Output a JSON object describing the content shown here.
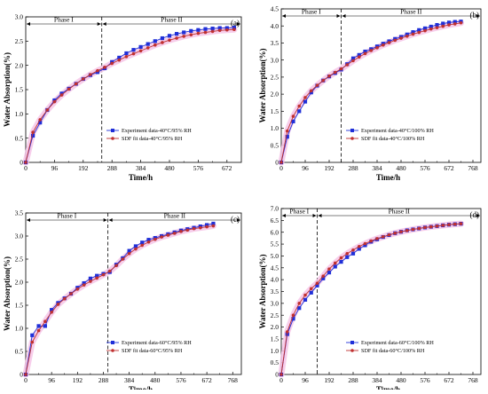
{
  "colors": {
    "experiment": "#1f2fd8",
    "sdf": "#c03030",
    "band": "#f6c6e8"
  },
  "chart_data": [
    {
      "type": "line",
      "panel": "(a)",
      "xlabel": "Time/h",
      "ylabel": "Water Absorption(%)",
      "xlim": [
        0,
        720
      ],
      "ylim": [
        0,
        3.0
      ],
      "xticks": [
        0,
        96,
        192,
        288,
        384,
        480,
        576,
        672
      ],
      "xtick_labels": [
        "0",
        "96",
        "192",
        "288",
        "384",
        "480",
        "576",
        "672"
      ],
      "yticks": [
        0,
        0.5,
        1.0,
        1.5,
        2.0,
        2.5,
        3.0
      ],
      "ytick_labels": [
        "0",
        "0.5",
        "1.0",
        "1.5",
        "2.0",
        "2.5",
        "3.0"
      ],
      "phase_split": 254,
      "phase_labels": [
        "Phase I",
        "Phase II"
      ],
      "series": [
        {
          "name": "Experiment data-40°C/95% RH",
          "marker": "square",
          "x": [
            0,
            24,
            48,
            72,
            96,
            120,
            144,
            168,
            192,
            216,
            240,
            264,
            288,
            312,
            336,
            360,
            384,
            408,
            432,
            456,
            480,
            504,
            528,
            552,
            576,
            600,
            624,
            648,
            672,
            696
          ],
          "y": [
            0,
            0.55,
            0.82,
            1.08,
            1.28,
            1.42,
            1.52,
            1.62,
            1.72,
            1.8,
            1.86,
            1.94,
            2.07,
            2.16,
            2.25,
            2.32,
            2.38,
            2.44,
            2.5,
            2.56,
            2.61,
            2.65,
            2.68,
            2.71,
            2.73,
            2.75,
            2.76,
            2.77,
            2.77,
            2.78
          ]
        },
        {
          "name": "SDF fit data-40°C/95% RH",
          "marker": "circle",
          "x": [
            0,
            24,
            48,
            72,
            96,
            120,
            144,
            168,
            192,
            216,
            240,
            264,
            288,
            312,
            336,
            360,
            384,
            408,
            432,
            456,
            480,
            504,
            528,
            552,
            576,
            600,
            624,
            648,
            672,
            696
          ],
          "y": [
            0,
            0.62,
            0.88,
            1.08,
            1.25,
            1.39,
            1.51,
            1.62,
            1.72,
            1.81,
            1.89,
            1.96,
            2.04,
            2.11,
            2.18,
            2.24,
            2.3,
            2.36,
            2.42,
            2.47,
            2.52,
            2.56,
            2.6,
            2.63,
            2.66,
            2.68,
            2.7,
            2.72,
            2.73,
            2.74
          ]
        }
      ]
    },
    {
      "type": "line",
      "panel": "(b)",
      "xlabel": "Time/h",
      "ylabel": "Water Absorption(%)",
      "xlim": [
        0,
        800
      ],
      "ylim": [
        0,
        4.5
      ],
      "xticks": [
        0,
        96,
        192,
        288,
        384,
        480,
        576,
        672,
        768
      ],
      "xtick_labels": [
        "0",
        "96",
        "192",
        "288",
        "384",
        "480",
        "576",
        "672",
        "768"
      ],
      "yticks": [
        0,
        0.5,
        1.0,
        1.5,
        2.0,
        2.5,
        3.0,
        3.5,
        4.0,
        4.5
      ],
      "ytick_labels": [
        "0",
        "0.5",
        "1.0",
        "1.5",
        "2.0",
        "2.5",
        "3.0",
        "3.5",
        "4.0",
        "4.5"
      ],
      "phase_split": 240,
      "phase_labels": [
        "Phase I",
        "Phase II"
      ],
      "series": [
        {
          "name": "Experiment data-40°C/100% RH",
          "marker": "square",
          "x": [
            0,
            24,
            48,
            72,
            96,
            120,
            144,
            168,
            192,
            216,
            240,
            264,
            288,
            312,
            336,
            360,
            384,
            408,
            432,
            456,
            480,
            504,
            528,
            552,
            576,
            600,
            624,
            648,
            672,
            696,
            720
          ],
          "y": [
            0,
            0.75,
            1.2,
            1.5,
            1.78,
            2.05,
            2.25,
            2.4,
            2.52,
            2.62,
            2.72,
            2.88,
            3.05,
            3.15,
            3.25,
            3.32,
            3.4,
            3.48,
            3.55,
            3.62,
            3.68,
            3.75,
            3.82,
            3.88,
            3.93,
            3.98,
            4.03,
            4.07,
            4.1,
            4.12,
            4.13
          ]
        },
        {
          "name": "SDF fit data-40°C/100% RH",
          "marker": "circle",
          "x": [
            0,
            24,
            48,
            72,
            96,
            120,
            144,
            168,
            192,
            216,
            240,
            264,
            288,
            312,
            336,
            360,
            384,
            408,
            432,
            456,
            480,
            504,
            528,
            552,
            576,
            600,
            624,
            648,
            672,
            696,
            720
          ],
          "y": [
            0,
            0.92,
            1.35,
            1.65,
            1.9,
            2.1,
            2.26,
            2.4,
            2.53,
            2.64,
            2.74,
            2.86,
            2.98,
            3.09,
            3.19,
            3.28,
            3.36,
            3.44,
            3.51,
            3.58,
            3.64,
            3.7,
            3.76,
            3.81,
            3.86,
            3.91,
            3.95,
            3.99,
            4.03,
            4.06,
            4.09
          ]
        }
      ]
    },
    {
      "type": "line",
      "panel": "(c)",
      "xlabel": "Time/h",
      "ylabel": "Water Absorption(%)",
      "xlim": [
        0,
        800
      ],
      "ylim": [
        0,
        3.5
      ],
      "xticks": [
        0,
        96,
        192,
        288,
        384,
        480,
        576,
        672,
        768
      ],
      "xtick_labels": [
        "0",
        "96",
        "192",
        "288",
        "384",
        "480",
        "576",
        "672",
        "768"
      ],
      "yticks": [
        0,
        0.5,
        1.0,
        1.5,
        2.0,
        2.5,
        3.0,
        3.5
      ],
      "ytick_labels": [
        "0",
        "0.5",
        "1.0",
        "1.5",
        "2.0",
        "2.5",
        "3.0",
        "3.5"
      ],
      "phase_split": 305,
      "phase_labels": [
        "Phase I",
        "Phase II"
      ],
      "series": [
        {
          "name": "Experiment data-60°C/95% RH",
          "marker": "square",
          "x": [
            0,
            24,
            48,
            72,
            96,
            120,
            144,
            168,
            192,
            216,
            240,
            264,
            288,
            312,
            336,
            360,
            384,
            408,
            432,
            456,
            480,
            504,
            528,
            552,
            576,
            600,
            624,
            648,
            672,
            696
          ],
          "y": [
            0,
            0.85,
            1.05,
            1.05,
            1.4,
            1.55,
            1.65,
            1.75,
            1.88,
            1.98,
            2.08,
            2.14,
            2.18,
            2.22,
            2.38,
            2.52,
            2.68,
            2.78,
            2.86,
            2.92,
            2.96,
            3.0,
            3.04,
            3.08,
            3.12,
            3.15,
            3.18,
            3.21,
            3.24,
            3.27
          ]
        },
        {
          "name": "SDF fit data-60°C/95% RH",
          "marker": "circle",
          "x": [
            0,
            24,
            48,
            72,
            96,
            120,
            144,
            168,
            192,
            216,
            240,
            264,
            288,
            312,
            336,
            360,
            384,
            408,
            432,
            456,
            480,
            504,
            528,
            552,
            576,
            600,
            624,
            648,
            672,
            696
          ],
          "y": [
            0,
            0.7,
            0.95,
            1.15,
            1.35,
            1.52,
            1.64,
            1.75,
            1.85,
            1.94,
            2.02,
            2.09,
            2.16,
            2.24,
            2.36,
            2.5,
            2.62,
            2.72,
            2.8,
            2.87,
            2.93,
            2.98,
            3.02,
            3.06,
            3.1,
            3.13,
            3.16,
            3.18,
            3.2,
            3.22
          ]
        }
      ]
    },
    {
      "type": "line",
      "panel": "(d)",
      "xlabel": "Time/h",
      "ylabel": "Water Absorption(%)",
      "xlim": [
        0,
        800
      ],
      "ylim": [
        0,
        7.0
      ],
      "xticks": [
        0,
        96,
        192,
        288,
        384,
        480,
        576,
        672,
        768
      ],
      "xtick_labels": [
        "0",
        "96",
        "192",
        "288",
        "384",
        "480",
        "576",
        "672",
        "768"
      ],
      "yticks": [
        0,
        0.5,
        1.0,
        1.5,
        2.0,
        2.5,
        3.0,
        3.5,
        4.0,
        4.5,
        5.0,
        5.5,
        6.0,
        6.5,
        7.0
      ],
      "ytick_labels": [
        "0",
        "0.5",
        "1.0",
        "1.5",
        "2.0",
        "2.5",
        "3.0",
        "3.5",
        "4.0",
        "4.5",
        "5.0",
        "5.5",
        "6.0",
        "6.5",
        "7.0"
      ],
      "phase_split": 144,
      "phase_labels": [
        "Phase I",
        "Phase II"
      ],
      "series": [
        {
          "name": "Experiment data-60°C/100% RH",
          "marker": "square",
          "x": [
            0,
            24,
            48,
            72,
            96,
            120,
            144,
            168,
            192,
            216,
            240,
            264,
            288,
            312,
            336,
            360,
            384,
            408,
            432,
            456,
            480,
            504,
            528,
            552,
            576,
            600,
            624,
            648,
            672,
            696,
            720
          ],
          "y": [
            0,
            1.7,
            2.35,
            2.8,
            3.15,
            3.45,
            3.75,
            4.05,
            4.3,
            4.55,
            4.75,
            4.95,
            5.1,
            5.3,
            5.45,
            5.6,
            5.7,
            5.8,
            5.88,
            5.96,
            6.02,
            6.08,
            6.12,
            6.16,
            6.2,
            6.23,
            6.26,
            6.29,
            6.32,
            6.34,
            6.36
          ]
        },
        {
          "name": "SDF fit data-60°C/100% RH",
          "marker": "circle",
          "x": [
            0,
            24,
            48,
            72,
            96,
            120,
            144,
            168,
            192,
            216,
            240,
            264,
            288,
            312,
            336,
            360,
            384,
            408,
            432,
            456,
            480,
            504,
            528,
            552,
            576,
            600,
            624,
            648,
            672,
            696,
            720
          ],
          "y": [
            0,
            1.8,
            2.5,
            3.0,
            3.35,
            3.62,
            3.85,
            4.15,
            4.45,
            4.7,
            4.92,
            5.1,
            5.25,
            5.4,
            5.52,
            5.63,
            5.73,
            5.81,
            5.89,
            5.96,
            6.02,
            6.07,
            6.12,
            6.16,
            6.2,
            6.23,
            6.26,
            6.29,
            6.32,
            6.34,
            6.36
          ]
        }
      ]
    }
  ]
}
